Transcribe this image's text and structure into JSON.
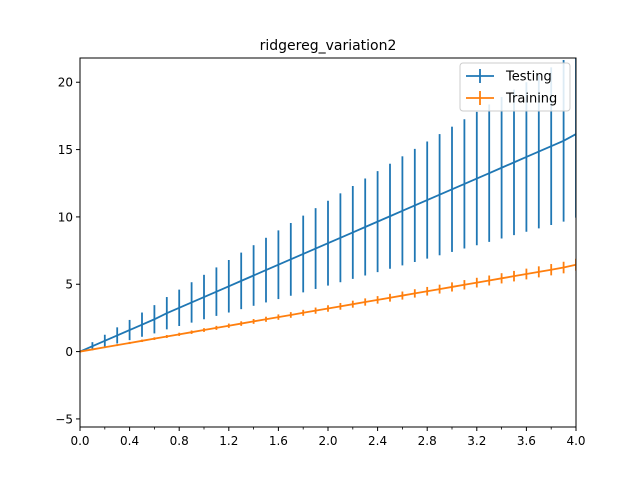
{
  "chart_data": {
    "type": "line",
    "title": "ridgereg_variation2",
    "xlabel": "",
    "ylabel": "",
    "xlim": [
      0.0,
      4.0
    ],
    "ylim": [
      -5.6,
      21.8
    ],
    "x_ticks": [
      "0.0",
      "0.4",
      "0.8",
      "1.2",
      "1.6",
      "2.0",
      "2.4",
      "2.8",
      "3.2",
      "3.6",
      "4.0"
    ],
    "x_minor_step": 0.2,
    "y_ticks": [
      "−5",
      "0",
      "5",
      "10",
      "15",
      "20"
    ],
    "grid": false,
    "legend_position": "top-right",
    "x": [
      0.0,
      0.1,
      0.2,
      0.3,
      0.4,
      0.5,
      0.6,
      0.7,
      0.8,
      0.9,
      1.0,
      1.1,
      1.2,
      1.3,
      1.4,
      1.5,
      1.6,
      1.7,
      1.8,
      1.9,
      2.0,
      2.1,
      2.2,
      2.3,
      2.4,
      2.5,
      2.6,
      2.7,
      2.8,
      2.9,
      3.0,
      3.1,
      3.2,
      3.3,
      3.4,
      3.5,
      3.6,
      3.7,
      3.8,
      3.9,
      4.0
    ],
    "series": [
      {
        "name": "Testing",
        "color": "#1f77b4",
        "values": [
          0.0,
          0.4,
          0.8,
          1.2,
          1.6,
          2.0,
          2.4,
          2.85,
          3.25,
          3.65,
          4.05,
          4.45,
          4.85,
          5.25,
          5.65,
          6.05,
          6.45,
          6.85,
          7.25,
          7.65,
          8.05,
          8.45,
          8.85,
          9.25,
          9.65,
          10.05,
          10.45,
          10.85,
          11.25,
          11.65,
          12.05,
          12.45,
          12.85,
          13.25,
          13.65,
          14.05,
          14.45,
          14.85,
          15.25,
          15.65,
          16.15
        ],
        "errors": [
          0.0,
          0.3,
          0.45,
          0.6,
          0.75,
          0.9,
          1.05,
          1.2,
          1.35,
          1.5,
          1.65,
          1.8,
          1.95,
          2.1,
          2.25,
          2.4,
          2.55,
          2.7,
          2.85,
          3.0,
          3.15,
          3.3,
          3.45,
          3.6,
          3.75,
          3.9,
          4.05,
          4.2,
          4.35,
          4.5,
          4.65,
          4.8,
          4.95,
          5.1,
          5.25,
          5.4,
          5.55,
          5.7,
          5.85,
          6.0,
          6.2
        ]
      },
      {
        "name": "Training",
        "color": "#ff7f0e",
        "values": [
          0.0,
          0.16,
          0.32,
          0.48,
          0.64,
          0.8,
          0.96,
          1.12,
          1.28,
          1.44,
          1.6,
          1.76,
          1.92,
          2.08,
          2.24,
          2.4,
          2.56,
          2.72,
          2.88,
          3.04,
          3.2,
          3.36,
          3.52,
          3.68,
          3.84,
          4.0,
          4.16,
          4.32,
          4.48,
          4.64,
          4.8,
          4.96,
          5.12,
          5.28,
          5.44,
          5.6,
          5.76,
          5.92,
          6.08,
          6.24,
          6.45
        ],
        "errors": [
          0.0,
          0.05,
          0.06,
          0.07,
          0.08,
          0.09,
          0.1,
          0.11,
          0.12,
          0.13,
          0.14,
          0.15,
          0.16,
          0.17,
          0.18,
          0.19,
          0.2,
          0.21,
          0.22,
          0.23,
          0.24,
          0.25,
          0.26,
          0.27,
          0.28,
          0.29,
          0.3,
          0.31,
          0.32,
          0.33,
          0.34,
          0.35,
          0.36,
          0.37,
          0.38,
          0.39,
          0.4,
          0.41,
          0.42,
          0.43,
          0.44
        ]
      }
    ]
  }
}
